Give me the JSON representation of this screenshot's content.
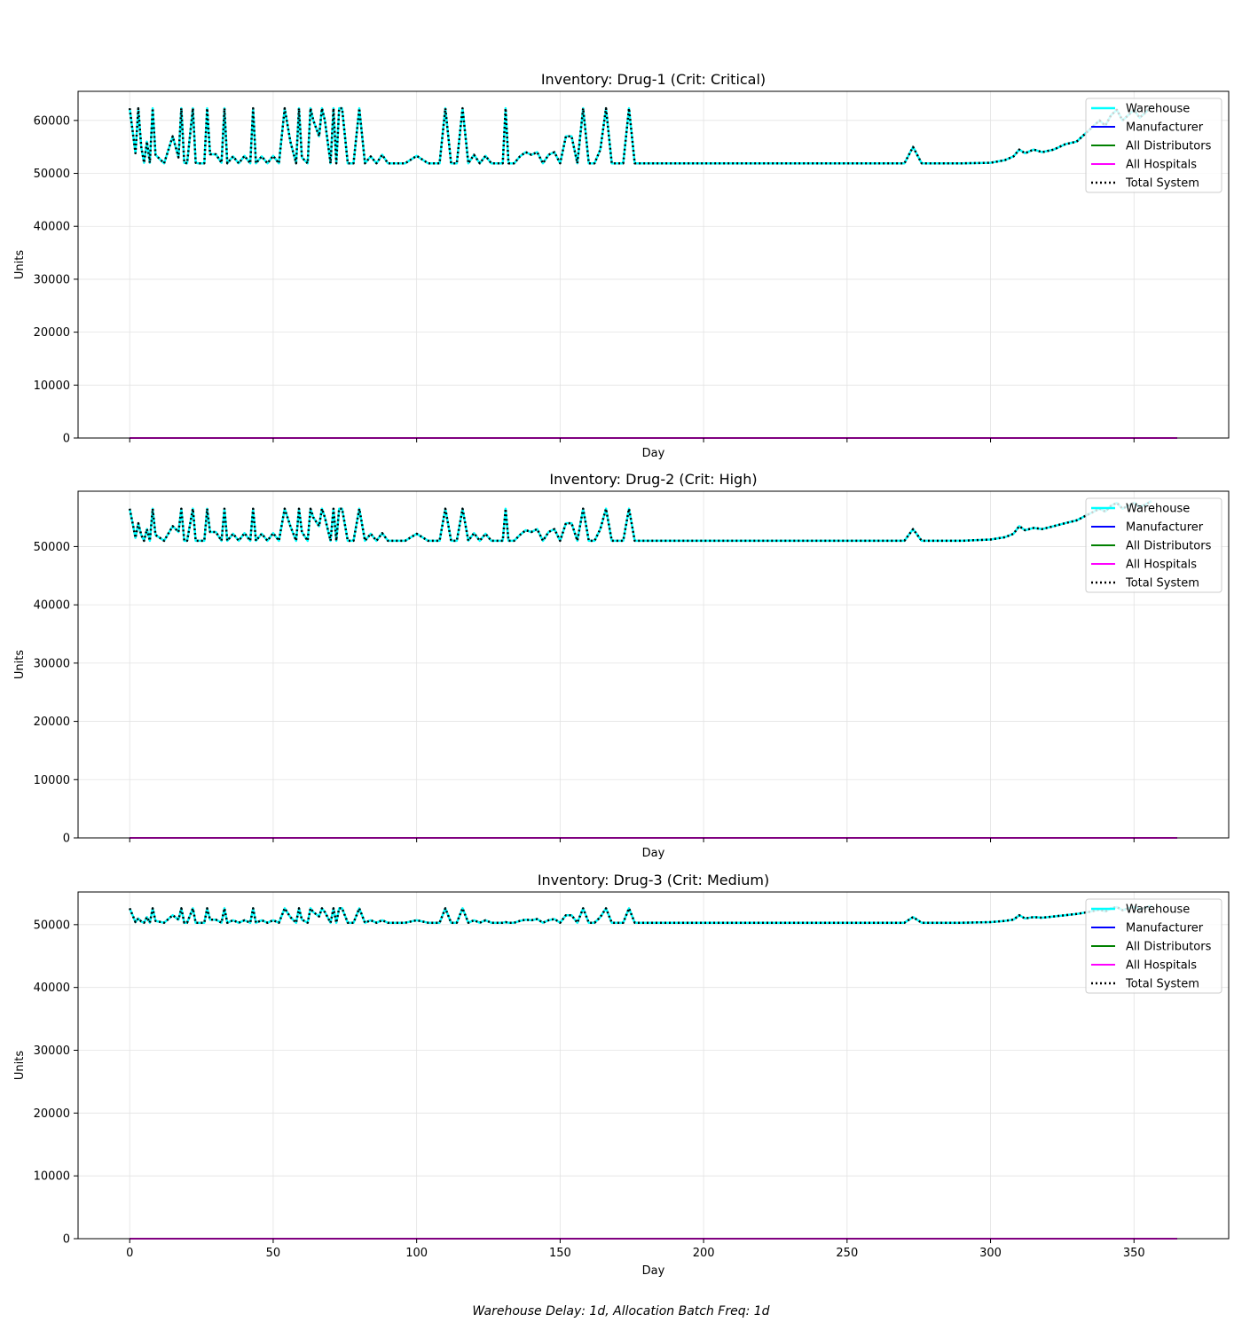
{
  "figure": {
    "footer": "Warehouse Delay: 1d, Allocation Batch Freq: 1d"
  },
  "chart_data": [
    {
      "type": "line",
      "title": "Inventory: Drug-1 (Crit: Critical)",
      "xlabel": "Day",
      "ylabel": "Units",
      "xlim": [
        -18,
        383
      ],
      "ylim": [
        0,
        65500
      ],
      "xticks": [
        0,
        50,
        100,
        150,
        200,
        250,
        300,
        350
      ],
      "yticks": [
        0,
        10000,
        20000,
        30000,
        40000,
        50000,
        60000
      ],
      "show_xtick_labels": false,
      "grid": true,
      "legend_position": "upper right",
      "legend": [
        "Warehouse",
        "Manufacturer",
        "All Distributors",
        "All Hospitals",
        "Total System"
      ],
      "series": [
        {
          "name": "Warehouse",
          "color": "#00ffff",
          "style": "solid",
          "x": [
            0,
            1,
            2,
            3,
            4,
            5,
            6,
            7,
            8,
            9,
            12,
            15,
            17,
            18,
            19,
            20,
            22,
            23,
            24,
            26,
            27,
            28,
            30,
            32,
            33,
            34,
            36,
            38,
            40,
            42,
            43,
            44,
            46,
            48,
            50,
            52,
            54,
            56,
            58,
            59,
            60,
            62,
            63,
            64,
            66,
            67,
            68,
            70,
            71,
            72,
            73,
            74,
            76,
            78,
            80,
            82,
            84,
            86,
            88,
            90,
            92,
            96,
            100,
            104,
            108,
            110,
            112,
            114,
            116,
            118,
            120,
            122,
            124,
            126,
            128,
            130,
            131,
            132,
            134,
            136,
            138,
            140,
            142,
            144,
            146,
            148,
            150,
            152,
            154,
            156,
            158,
            160,
            162,
            164,
            166,
            168,
            170,
            172,
            174,
            176,
            180,
            200,
            230,
            260,
            270,
            273,
            276,
            290,
            300,
            305,
            308,
            310,
            312,
            315,
            318,
            322,
            326,
            330,
            334,
            336,
            338,
            340,
            342,
            344,
            346,
            348,
            350,
            352,
            354,
            356
          ],
          "y": [
            62300,
            58000,
            53800,
            62300,
            55000,
            52000,
            56000,
            52000,
            62300,
            53500,
            51900,
            57000,
            53000,
            62300,
            52000,
            51900,
            62300,
            52000,
            51900,
            51900,
            62300,
            53600,
            53600,
            52000,
            62300,
            51900,
            53200,
            51900,
            53300,
            51900,
            62300,
            51900,
            53200,
            51900,
            53300,
            51900,
            62300,
            56000,
            51900,
            62300,
            53000,
            51900,
            62300,
            60000,
            57000,
            62300,
            60000,
            51900,
            62300,
            51900,
            62300,
            62300,
            51900,
            51900,
            62300,
            51900,
            53200,
            51900,
            53500,
            51900,
            51900,
            51900,
            53300,
            51900,
            51900,
            62300,
            51900,
            51900,
            62300,
            51900,
            53500,
            51900,
            53300,
            51900,
            51900,
            51900,
            62300,
            51900,
            51900,
            53200,
            54000,
            53500,
            54000,
            51900,
            53500,
            54000,
            51900,
            57000,
            57000,
            51900,
            62300,
            51900,
            51900,
            54500,
            62300,
            51900,
            51900,
            51900,
            62300,
            51900,
            51900,
            51900,
            51900,
            51900,
            51900,
            55000,
            51900,
            51900,
            52000,
            52500,
            53200,
            54500,
            53800,
            54500,
            54000,
            54500,
            55500,
            56000,
            58000,
            59000,
            60000,
            59000,
            61000,
            62000,
            60000,
            61000,
            62000,
            60500,
            61500,
            62500
          ]
        },
        {
          "name": "Manufacturer",
          "color": "#0000ff",
          "style": "solid",
          "x": [
            0,
            365
          ],
          "y": [
            0,
            0
          ]
        },
        {
          "name": "All Distributors",
          "color": "#008000",
          "style": "solid",
          "x": [
            0,
            365
          ],
          "y": [
            0,
            0
          ]
        },
        {
          "name": "All Hospitals",
          "color": "#ff00ff",
          "style": "solid",
          "x": [
            0,
            365
          ],
          "y": [
            0,
            0
          ]
        },
        {
          "name": "Total System",
          "color": "#000000",
          "style": "dotted",
          "same_as": "Warehouse"
        }
      ]
    },
    {
      "type": "line",
      "title": "Inventory: Drug-2 (Crit: High)",
      "xlabel": "Day",
      "ylabel": "Units",
      "xlim": [
        -18,
        383
      ],
      "ylim": [
        0,
        59500
      ],
      "xticks": [
        0,
        50,
        100,
        150,
        200,
        250,
        300,
        350
      ],
      "yticks": [
        0,
        10000,
        20000,
        30000,
        40000,
        50000
      ],
      "show_xtick_labels": false,
      "grid": true,
      "legend_position": "upper right",
      "legend": [
        "Warehouse",
        "Manufacturer",
        "All Distributors",
        "All Hospitals",
        "Total System"
      ],
      "series": [
        {
          "name": "Warehouse",
          "color": "#00ffff",
          "style": "solid",
          "x": [
            0,
            1,
            2,
            3,
            4,
            5,
            6,
            7,
            8,
            9,
            12,
            15,
            17,
            18,
            19,
            20,
            22,
            23,
            24,
            26,
            27,
            28,
            30,
            32,
            33,
            34,
            36,
            38,
            40,
            42,
            43,
            44,
            46,
            48,
            50,
            52,
            54,
            56,
            58,
            59,
            60,
            62,
            63,
            64,
            66,
            67,
            68,
            70,
            71,
            72,
            73,
            74,
            76,
            78,
            80,
            82,
            84,
            86,
            88,
            90,
            92,
            96,
            100,
            104,
            108,
            110,
            112,
            114,
            116,
            118,
            120,
            122,
            124,
            126,
            128,
            130,
            131,
            132,
            134,
            136,
            138,
            140,
            142,
            144,
            146,
            148,
            150,
            152,
            154,
            156,
            158,
            160,
            162,
            164,
            166,
            168,
            170,
            172,
            174,
            176,
            180,
            200,
            230,
            260,
            270,
            273,
            276,
            290,
            300,
            305,
            308,
            310,
            312,
            315,
            318,
            322,
            326,
            330,
            334,
            336,
            338,
            340,
            342,
            344,
            346,
            348,
            350,
            352,
            354,
            356
          ],
          "y": [
            56500,
            54000,
            51500,
            54000,
            52000,
            51000,
            53000,
            51000,
            56500,
            52000,
            51000,
            53500,
            52500,
            56500,
            51000,
            51000,
            56500,
            51000,
            51000,
            51000,
            56500,
            52500,
            52500,
            51000,
            56500,
            51000,
            52200,
            51000,
            52300,
            51000,
            56500,
            51000,
            52200,
            51000,
            52300,
            51000,
            56500,
            53500,
            51000,
            56500,
            52500,
            51000,
            56500,
            55000,
            53500,
            56500,
            55000,
            51000,
            56500,
            51000,
            56500,
            56500,
            51000,
            51000,
            56500,
            51000,
            52200,
            51000,
            52300,
            51000,
            51000,
            51000,
            52200,
            51000,
            51000,
            56500,
            51000,
            51000,
            56500,
            51000,
            52300,
            51000,
            52200,
            51000,
            51000,
            51000,
            56500,
            51000,
            51000,
            52000,
            52800,
            52500,
            53000,
            51000,
            52500,
            53000,
            51000,
            54000,
            54000,
            51000,
            56500,
            51000,
            51000,
            53000,
            56500,
            51000,
            51000,
            51000,
            56500,
            51000,
            51000,
            51000,
            51000,
            51000,
            51000,
            53000,
            51000,
            51000,
            51200,
            51600,
            52200,
            53500,
            52800,
            53200,
            53000,
            53500,
            54000,
            54500,
            55500,
            56000,
            56500,
            56000,
            57000,
            57500,
            56500,
            57000,
            57500,
            56800,
            57200,
            57800
          ]
        },
        {
          "name": "Manufacturer",
          "color": "#0000ff",
          "style": "solid",
          "x": [
            0,
            365
          ],
          "y": [
            0,
            0
          ]
        },
        {
          "name": "All Distributors",
          "color": "#008000",
          "style": "solid",
          "x": [
            0,
            365
          ],
          "y": [
            0,
            0
          ]
        },
        {
          "name": "All Hospitals",
          "color": "#ff00ff",
          "style": "solid",
          "x": [
            0,
            365
          ],
          "y": [
            0,
            0
          ]
        },
        {
          "name": "Total System",
          "color": "#000000",
          "style": "dotted",
          "same_as": "Warehouse"
        }
      ]
    },
    {
      "type": "line",
      "title": "Inventory: Drug-3 (Crit: Medium)",
      "xlabel": "Day",
      "ylabel": "Units",
      "xlim": [
        -18,
        383
      ],
      "ylim": [
        0,
        55200
      ],
      "xticks": [
        0,
        50,
        100,
        150,
        200,
        250,
        300,
        350
      ],
      "yticks": [
        0,
        10000,
        20000,
        30000,
        40000,
        50000
      ],
      "show_xtick_labels": true,
      "grid": true,
      "legend_position": "upper right",
      "legend": [
        "Warehouse",
        "Manufacturer",
        "All Distributors",
        "All Hospitals",
        "Total System"
      ],
      "series": [
        {
          "name": "Warehouse",
          "color": "#00ffff",
          "style": "solid",
          "x": [
            0,
            1,
            2,
            3,
            4,
            5,
            6,
            7,
            8,
            9,
            12,
            15,
            17,
            18,
            19,
            20,
            22,
            23,
            24,
            26,
            27,
            28,
            30,
            32,
            33,
            34,
            36,
            38,
            40,
            42,
            43,
            44,
            46,
            48,
            50,
            52,
            54,
            56,
            58,
            59,
            60,
            62,
            63,
            64,
            66,
            67,
            68,
            70,
            71,
            72,
            73,
            74,
            76,
            78,
            80,
            82,
            84,
            86,
            88,
            90,
            92,
            96,
            100,
            104,
            108,
            110,
            112,
            114,
            116,
            118,
            120,
            122,
            124,
            126,
            128,
            130,
            131,
            132,
            134,
            136,
            138,
            140,
            142,
            144,
            146,
            148,
            150,
            152,
            154,
            156,
            158,
            160,
            162,
            164,
            166,
            168,
            170,
            172,
            174,
            176,
            180,
            200,
            230,
            260,
            270,
            273,
            276,
            290,
            300,
            305,
            308,
            310,
            312,
            315,
            318,
            322,
            326,
            330,
            334,
            336,
            338,
            340,
            342,
            344,
            346,
            348,
            350,
            352,
            354,
            356
          ],
          "y": [
            52600,
            51500,
            50400,
            51000,
            50500,
            50300,
            51200,
            50300,
            52600,
            50600,
            50300,
            51500,
            50800,
            52600,
            50300,
            50300,
            52600,
            50300,
            50300,
            50300,
            52600,
            50800,
            50800,
            50300,
            52600,
            50300,
            50700,
            50300,
            50700,
            50300,
            52600,
            50300,
            50700,
            50300,
            50700,
            50300,
            52600,
            51200,
            50300,
            52600,
            50800,
            50300,
            52600,
            52000,
            51300,
            52600,
            52000,
            50300,
            52600,
            50300,
            52600,
            52600,
            50300,
            50300,
            52600,
            50300,
            50700,
            50300,
            50700,
            50300,
            50300,
            50300,
            50700,
            50300,
            50300,
            52600,
            50300,
            50300,
            52600,
            50300,
            50700,
            50300,
            50700,
            50300,
            50300,
            50300,
            50400,
            50300,
            50300,
            50600,
            50800,
            50700,
            50900,
            50300,
            50700,
            50900,
            50300,
            51500,
            51500,
            50300,
            52600,
            50300,
            50300,
            51200,
            52600,
            50300,
            50300,
            50300,
            52600,
            50300,
            50300,
            50300,
            50300,
            50300,
            50300,
            51200,
            50300,
            50300,
            50400,
            50600,
            50800,
            51500,
            51000,
            51200,
            51100,
            51300,
            51500,
            51700,
            52000,
            52200,
            52400,
            52100,
            52600,
            52800,
            52300,
            52600,
            52800,
            52400,
            52700,
            53000
          ]
        },
        {
          "name": "Manufacturer",
          "color": "#0000ff",
          "style": "solid",
          "x": [
            0,
            365
          ],
          "y": [
            0,
            0
          ]
        },
        {
          "name": "All Distributors",
          "color": "#008000",
          "style": "solid",
          "x": [
            0,
            365
          ],
          "y": [
            0,
            0
          ]
        },
        {
          "name": "All Hospitals",
          "color": "#ff00ff",
          "style": "solid",
          "x": [
            0,
            365
          ],
          "y": [
            0,
            0
          ]
        },
        {
          "name": "Total System",
          "color": "#000000",
          "style": "dotted",
          "same_as": "Warehouse"
        }
      ]
    }
  ]
}
